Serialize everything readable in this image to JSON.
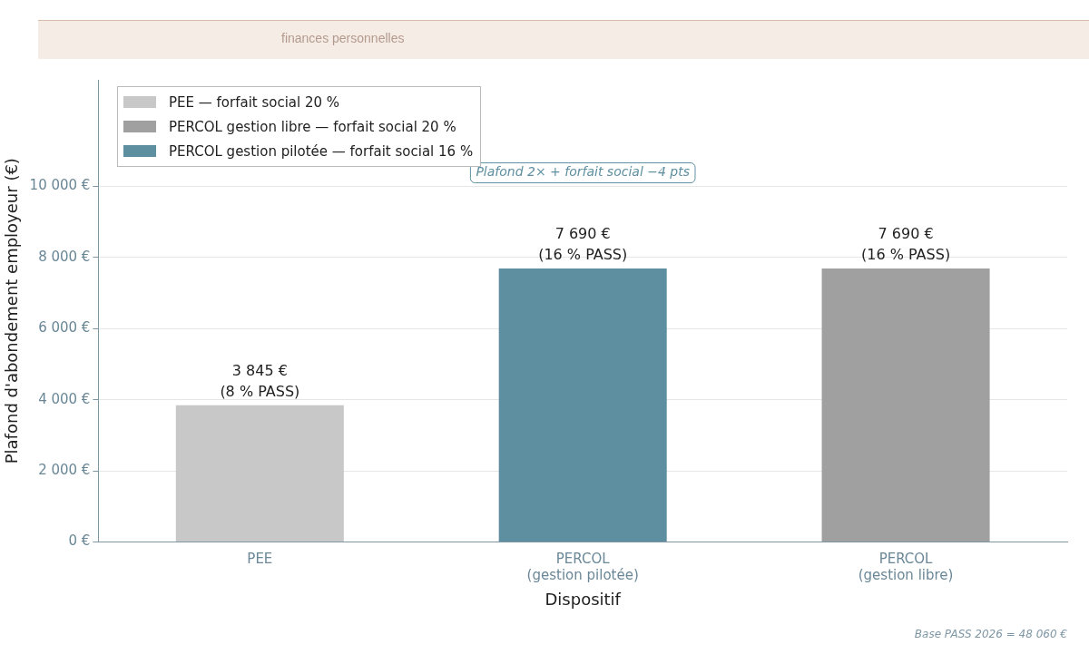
{
  "chart_data": {
    "type": "bar",
    "xlabel": "Dispositif",
    "ylabel": "Plafond d'abondement employeur (€)",
    "categories": [
      "PEE",
      "PERCOL\n(gestion pilotée)",
      "PERCOL\n(gestion libre)"
    ],
    "series": [
      {
        "name": "PEE — forfait social 20 %",
        "color": "#c8c8c8",
        "values": [
          3845,
          null,
          null
        ],
        "value_labels": [
          "3 845 €\n(8 % PASS)",
          null,
          null
        ]
      },
      {
        "name": "PERCOL gestion libre — forfait social 20 %",
        "color": "#a0a0a0",
        "values": [
          null,
          null,
          7690
        ],
        "value_labels": [
          null,
          null,
          "7 690 €\n(16 % PASS)"
        ]
      },
      {
        "name": "PERCOL gestion pilotée — forfait social 16 %",
        "color": "#5e8fa0",
        "values": [
          null,
          7690,
          null
        ],
        "value_labels": [
          null,
          "7 690 €\n(16 % PASS)",
          null
        ]
      }
    ],
    "ylim": [
      0,
      13000
    ],
    "yticks": [
      {
        "value": 0,
        "label": "0 €"
      },
      {
        "value": 2000,
        "label": "2 000 €"
      },
      {
        "value": 4000,
        "label": "4 000 €"
      },
      {
        "value": 6000,
        "label": "6 000 €"
      },
      {
        "value": 8000,
        "label": "8 000 €"
      },
      {
        "value": 10000,
        "label": "10 000 €"
      }
    ],
    "grid": "y",
    "legend": "top left",
    "annotations": [
      "finances personnelles",
      "Plafond 2× + forfait social −4 pts",
      "Base PASS 2026 = 48 060 €"
    ]
  }
}
